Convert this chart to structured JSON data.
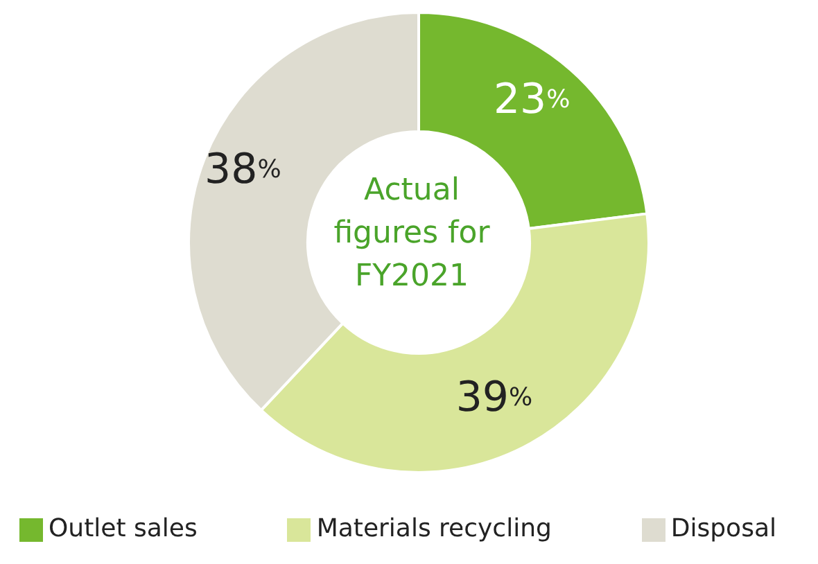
{
  "chart_data": {
    "type": "donut",
    "title": "Actual figures for FY2021",
    "categories": [
      "Outlet sales",
      "Materials recycling",
      "Disposal"
    ],
    "values": [
      23,
      39,
      38
    ],
    "colors": [
      "#75b82e",
      "#d9e69a",
      "#dedcd0"
    ],
    "value_labels": [
      "23%",
      "39%",
      "38%"
    ],
    "legend": "bottom"
  }
}
